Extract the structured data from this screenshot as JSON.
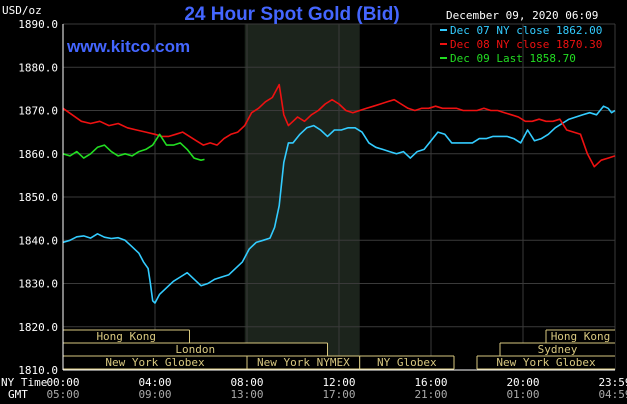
{
  "chart_data": {
    "type": "line",
    "title": "24 Hour Spot Gold (Bid)",
    "site": "www.kitco.com",
    "date_label": "December 09, 2020 06:09",
    "ylabel": "USD/oz",
    "ylim": [
      1810,
      1890
    ],
    "yticks": [
      1810,
      1820,
      1830,
      1840,
      1850,
      1860,
      1870,
      1880,
      1890
    ],
    "ytick_labels": [
      "1810.0",
      "1820.0",
      "1830.0",
      "1840.0",
      "1850.0",
      "1860.0",
      "1870.0",
      "1880.0",
      "1890.0"
    ],
    "xlim": [
      0,
      24
    ],
    "xticks": [
      0,
      4,
      8,
      12,
      16,
      20,
      24
    ],
    "ny_time_label": "NY Time",
    "gmt_label": "GMT",
    "ny_tick_labels": [
      "00:00",
      "04:00",
      "08:00",
      "12:00",
      "16:00",
      "20:00",
      "23:59"
    ],
    "gmt_tick_labels": [
      "05:00",
      "09:00",
      "13:00",
      "17:00",
      "21:00",
      "01:00",
      "04:59"
    ],
    "highlight_range": [
      7.9,
      12.9
    ],
    "series": [
      {
        "name": "Dec 07 NY close 1862.00",
        "color": "#33ccff",
        "x": [
          0,
          0.3,
          0.6,
          0.9,
          1.2,
          1.5,
          1.8,
          2.1,
          2.4,
          2.7,
          3.0,
          3.3,
          3.5,
          3.7,
          3.8,
          3.9,
          4.0,
          4.2,
          4.5,
          4.8,
          5.1,
          5.4,
          5.7,
          6.0,
          6.3,
          6.6,
          6.9,
          7.2,
          7.5,
          7.8,
          8.1,
          8.4,
          8.7,
          9.0,
          9.2,
          9.4,
          9.5,
          9.6,
          9.8,
          10.0,
          10.3,
          10.6,
          10.9,
          11.2,
          11.5,
          11.8,
          12.1,
          12.4,
          12.7,
          13.0,
          13.3,
          13.6,
          13.9,
          14.2,
          14.5,
          14.8,
          15.1,
          15.4,
          15.7,
          16.0,
          16.3,
          16.6,
          16.9,
          17.2,
          17.5,
          17.8,
          18.1,
          18.4,
          18.7,
          19.0,
          19.3,
          19.6,
          19.9,
          20.2,
          20.5,
          20.8,
          21.1,
          21.4,
          21.7,
          22.0,
          22.3,
          22.6,
          22.9,
          23.2,
          23.5,
          23.7,
          23.85,
          24.0
        ],
        "y": [
          1839.5,
          1840.0,
          1840.8,
          1841.0,
          1840.5,
          1841.5,
          1840.7,
          1840.4,
          1840.6,
          1840.0,
          1838.5,
          1837.0,
          1835.0,
          1833.5,
          1830.0,
          1826.0,
          1825.5,
          1827.5,
          1829.0,
          1830.5,
          1831.5,
          1832.5,
          1831.0,
          1829.5,
          1830.0,
          1831.0,
          1831.5,
          1832.0,
          1833.5,
          1835.0,
          1838.0,
          1839.5,
          1840.0,
          1840.5,
          1843.0,
          1848.0,
          1853.0,
          1858.0,
          1862.5,
          1862.5,
          1864.5,
          1866.0,
          1866.5,
          1865.5,
          1864.0,
          1865.5,
          1865.5,
          1866.0,
          1866.0,
          1865.0,
          1862.5,
          1861.5,
          1861.0,
          1860.5,
          1860.0,
          1860.5,
          1859.0,
          1860.5,
          1861.0,
          1863.0,
          1865.0,
          1864.5,
          1862.5,
          1862.5,
          1862.5,
          1862.5,
          1863.5,
          1863.5,
          1864.0,
          1864.0,
          1864.0,
          1863.5,
          1862.5,
          1865.5,
          1863.0,
          1863.5,
          1864.5,
          1866.0,
          1867.0,
          1868.0,
          1868.5,
          1869.0,
          1869.5,
          1869.0,
          1871.0,
          1870.5,
          1869.5,
          1870.0
        ]
      },
      {
        "name": "Dec 08 NY close 1870.30",
        "color": "#ee1111",
        "x": [
          0,
          0.4,
          0.8,
          1.2,
          1.6,
          2.0,
          2.4,
          2.8,
          3.2,
          3.6,
          4.0,
          4.3,
          4.6,
          4.9,
          5.2,
          5.5,
          5.8,
          6.1,
          6.4,
          6.7,
          7.0,
          7.3,
          7.6,
          7.9,
          8.2,
          8.5,
          8.8,
          9.1,
          9.4,
          9.6,
          9.8,
          10.0,
          10.2,
          10.5,
          10.8,
          11.1,
          11.4,
          11.7,
          12.0,
          12.3,
          12.6,
          12.9,
          13.2,
          13.5,
          13.8,
          14.1,
          14.4,
          14.7,
          15.0,
          15.3,
          15.6,
          15.9,
          16.2,
          16.5,
          16.8,
          17.1,
          17.4,
          17.7,
          18.0,
          18.3,
          18.6,
          18.9,
          19.2,
          19.5,
          19.8,
          20.1,
          20.4,
          20.7,
          21.0,
          21.3,
          21.6,
          21.9,
          22.2,
          22.5,
          22.8,
          23.1,
          23.4,
          23.7,
          24.0
        ],
        "y": [
          1870.5,
          1869.0,
          1867.5,
          1867.0,
          1867.5,
          1866.5,
          1867.0,
          1866.0,
          1865.5,
          1865.0,
          1864.5,
          1864.0,
          1864.0,
          1864.5,
          1865.0,
          1864.0,
          1863.0,
          1862.0,
          1862.5,
          1862.0,
          1863.5,
          1864.5,
          1865.0,
          1866.5,
          1869.5,
          1870.5,
          1872.0,
          1873.0,
          1876.0,
          1869.0,
          1866.5,
          1867.5,
          1868.5,
          1867.5,
          1869.0,
          1870.0,
          1871.5,
          1872.5,
          1871.5,
          1870.0,
          1869.5,
          1870.0,
          1870.5,
          1871.0,
          1871.5,
          1872.0,
          1872.5,
          1871.5,
          1870.5,
          1870.0,
          1870.5,
          1870.5,
          1871.0,
          1870.5,
          1870.5,
          1870.5,
          1870.0,
          1870.0,
          1870.0,
          1870.5,
          1870.0,
          1870.0,
          1869.5,
          1869.0,
          1868.5,
          1867.5,
          1867.5,
          1868.0,
          1867.5,
          1867.5,
          1868.0,
          1865.5,
          1865.0,
          1864.5,
          1860.0,
          1857.0,
          1858.5,
          1859.0,
          1859.5
        ]
      },
      {
        "name": "Dec 09 Last 1858.70",
        "color": "#22dd22",
        "x": [
          0,
          0.3,
          0.6,
          0.9,
          1.2,
          1.5,
          1.8,
          2.1,
          2.4,
          2.7,
          3.0,
          3.3,
          3.6,
          3.9,
          4.2,
          4.5,
          4.8,
          5.1,
          5.4,
          5.7,
          6.0,
          6.15
        ],
        "y": [
          1860.0,
          1859.5,
          1860.5,
          1859.0,
          1860.0,
          1861.5,
          1862.0,
          1860.5,
          1859.5,
          1860.0,
          1859.5,
          1860.5,
          1861.0,
          1862.0,
          1864.5,
          1862.0,
          1862.0,
          1862.5,
          1861.0,
          1859.0,
          1858.5,
          1858.7
        ]
      }
    ],
    "session_rows": [
      {
        "row": 0,
        "label": "Hong Kong",
        "start": 0,
        "end": 5.5,
        "open_left": true,
        "open_right": false
      },
      {
        "row": 0,
        "label": "Hong Kong",
        "start": 21.0,
        "end": 24,
        "open_left": false,
        "open_right": true
      },
      {
        "row": 1,
        "label": "London",
        "start": 0,
        "end": 11.5,
        "open_left": true,
        "open_right": false
      },
      {
        "row": 1,
        "label": "Sydney",
        "start": 19.0,
        "end": 24,
        "open_left": false,
        "open_right": true
      },
      {
        "row": 2,
        "label": "New York Globex",
        "start": 0,
        "end": 8.0,
        "open_left": true,
        "open_right": false
      },
      {
        "row": 2,
        "label": "New York NYMEX",
        "start": 8.0,
        "end": 12.9,
        "open_left": false,
        "open_right": false
      },
      {
        "row": 2,
        "label": "NY Globex",
        "start": 12.9,
        "end": 17.0,
        "open_left": false,
        "open_right": false
      },
      {
        "row": 2,
        "label": "New York Globex",
        "start": 18.0,
        "end": 24,
        "open_left": false,
        "open_right": true
      }
    ]
  }
}
